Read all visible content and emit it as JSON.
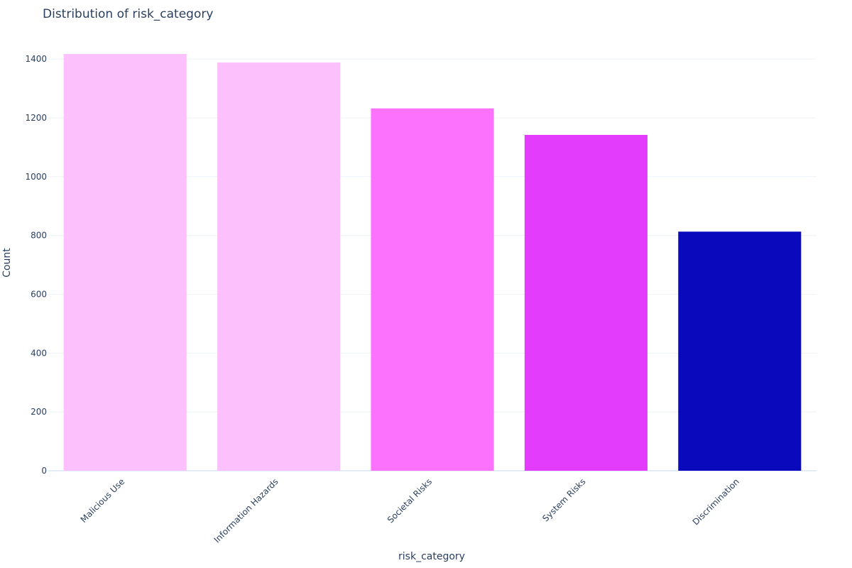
{
  "chart_data": {
    "type": "bar",
    "title": "Distribution of risk_category",
    "x_label": "risk_category",
    "y_label": "Count",
    "categories": [
      "Malicious Use",
      "Information Hazards",
      "Societal Risks",
      "System Risks",
      "Discrimination"
    ],
    "values": [
      1417,
      1388,
      1232,
      1142,
      813
    ],
    "colors": [
      "#fcc0fc",
      "#fcc0fc",
      "#fc72fc",
      "#e43cfc",
      "#0a0abc"
    ],
    "ylim": [
      0,
      1492
    ],
    "yticks": [
      0,
      200,
      400,
      600,
      800,
      1000,
      1200,
      1400
    ],
    "grid": true
  }
}
